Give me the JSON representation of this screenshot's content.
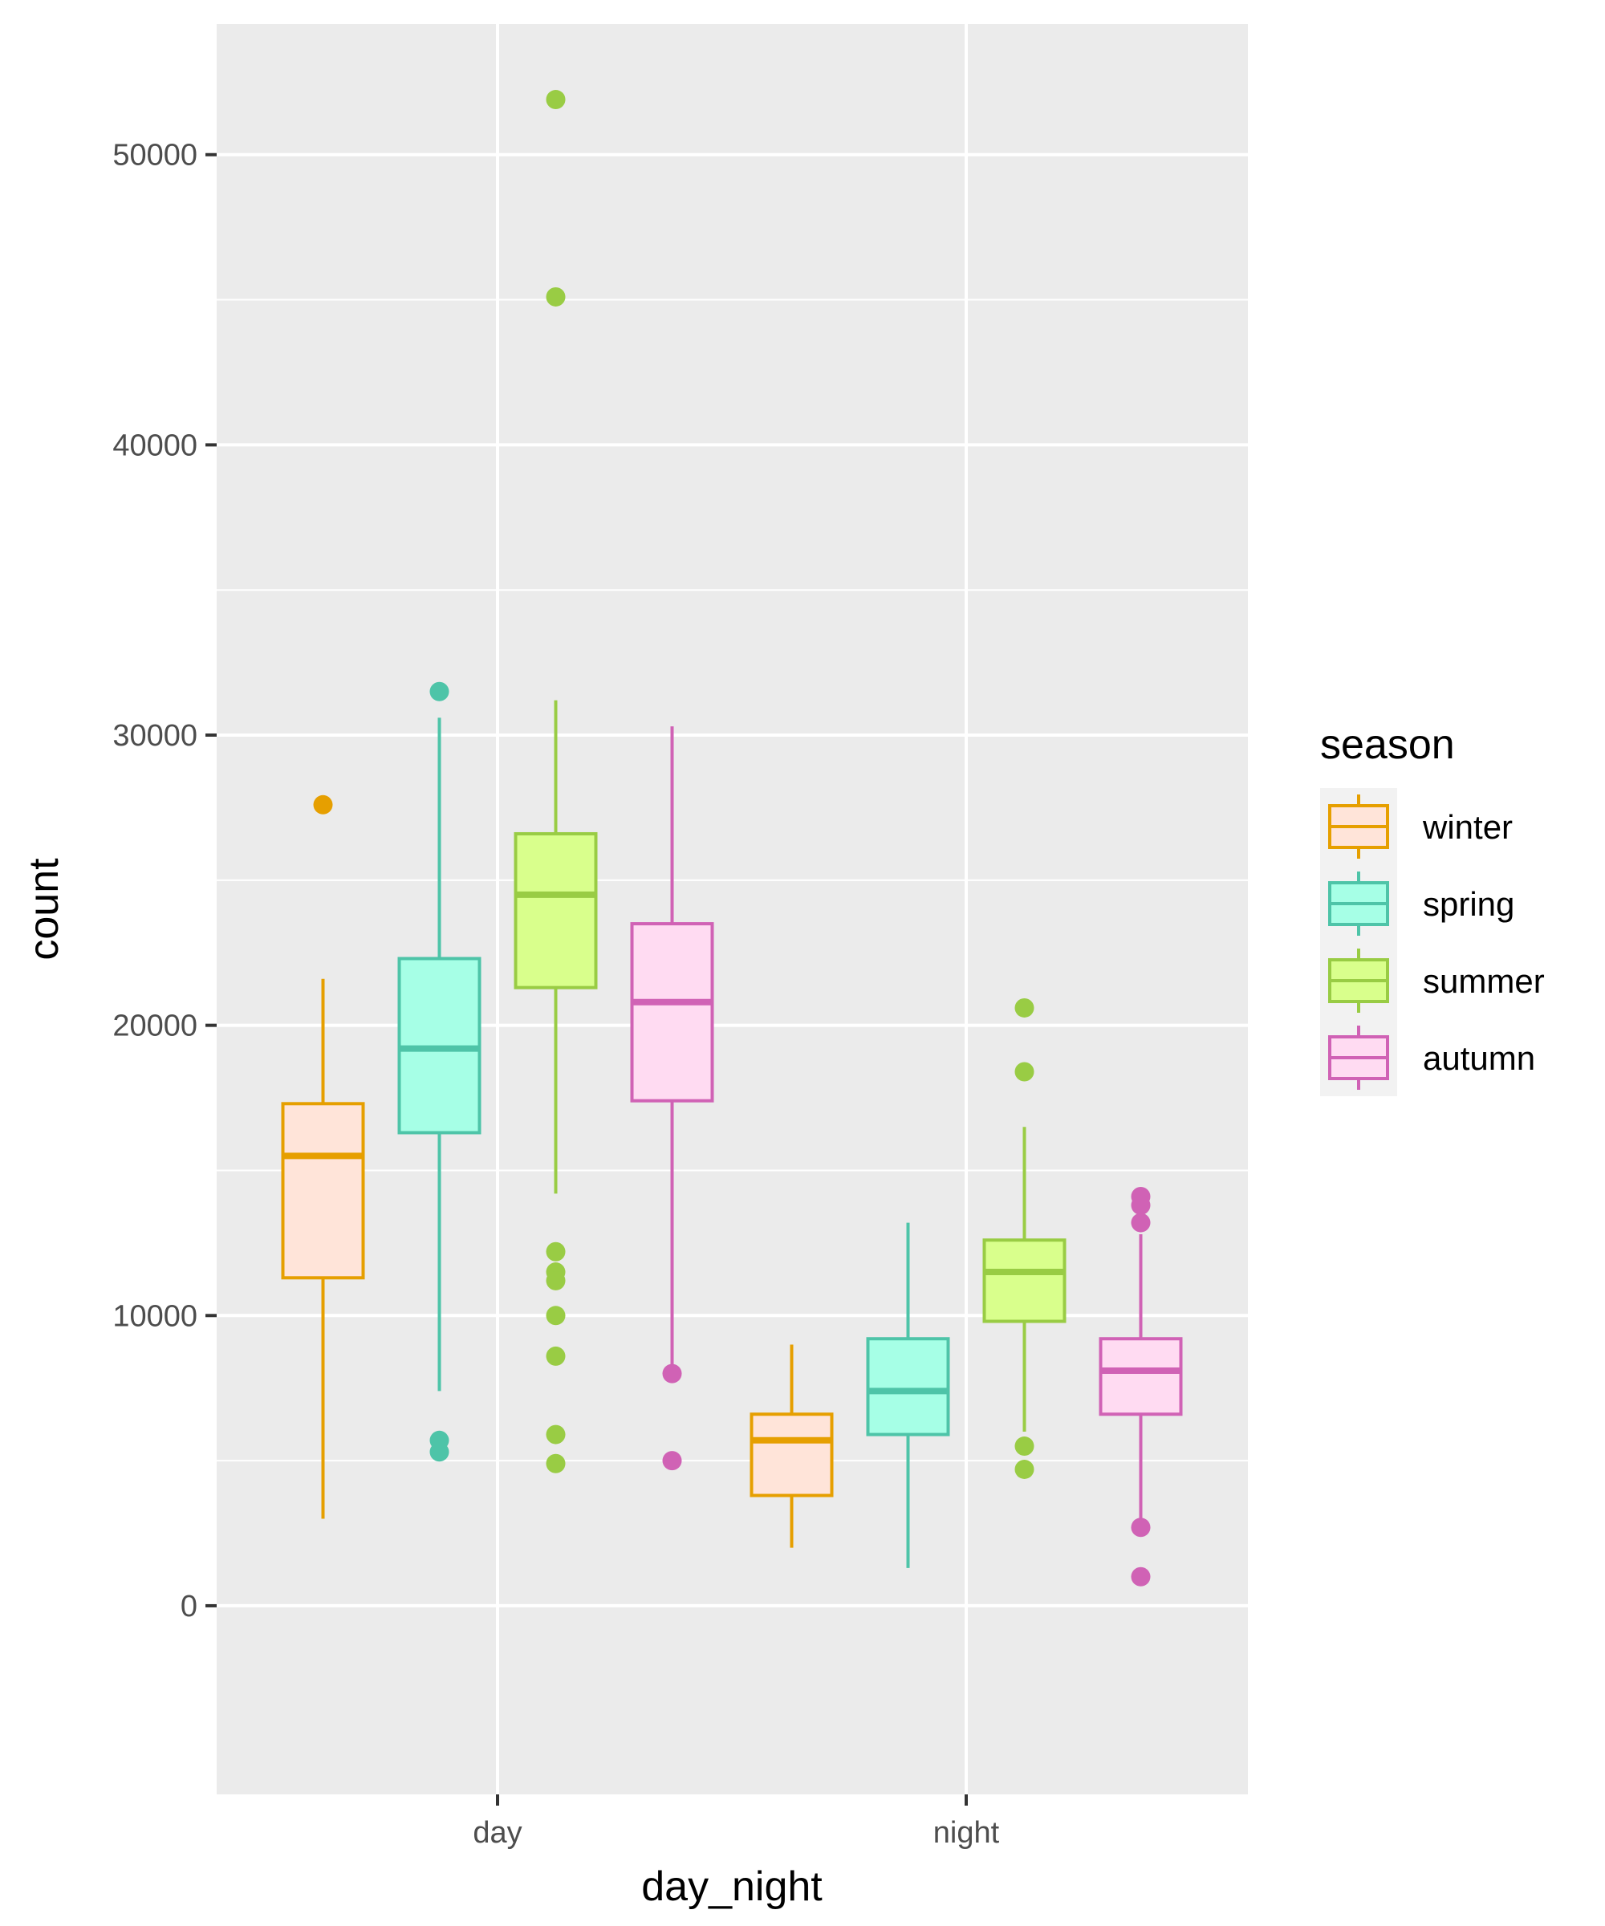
{
  "chart_data": {
    "type": "boxplot",
    "title": "",
    "xlabel": "day_night",
    "ylabel": "count",
    "categories": [
      "day",
      "night"
    ],
    "ylim": [
      -6500,
      54500
    ],
    "yticks": [
      0,
      10000,
      20000,
      30000,
      40000,
      50000
    ],
    "ytick_labels": [
      "0",
      "10000",
      "20000",
      "30000",
      "40000",
      "50000"
    ],
    "grid": true,
    "legend": {
      "title": "season",
      "position": "right"
    },
    "series": [
      {
        "name": "winter",
        "stroke": "#E69F00",
        "fill": "#FFE4D9",
        "boxes": [
          {
            "category": "day",
            "whisker_low": 3000,
            "q1": 11300,
            "median": 15500,
            "q3": 17300,
            "whisker_high": 21600,
            "outliers": [
              27600
            ]
          },
          {
            "category": "night",
            "whisker_low": 2000,
            "q1": 3800,
            "median": 5700,
            "q3": 6600,
            "whisker_high": 9000,
            "outliers": []
          }
        ]
      },
      {
        "name": "spring",
        "stroke": "#4EC4A8",
        "fill": "#A6FFE6",
        "boxes": [
          {
            "category": "day",
            "whisker_low": 7400,
            "q1": 16300,
            "median": 19200,
            "q3": 22300,
            "whisker_high": 30600,
            "outliers": [
              31500,
              5700,
              5300
            ]
          },
          {
            "category": "night",
            "whisker_low": 1300,
            "q1": 5900,
            "median": 7400,
            "q3": 9200,
            "whisker_high": 13200,
            "outliers": []
          }
        ]
      },
      {
        "name": "summer",
        "stroke": "#99CC44",
        "fill": "#D9FF8C",
        "boxes": [
          {
            "category": "day",
            "whisker_low": 14200,
            "q1": 21300,
            "median": 24500,
            "q3": 26600,
            "whisker_high": 31200,
            "outliers": [
              51900,
              45100,
              12200,
              11500,
              11200,
              10000,
              8600,
              5900,
              4900
            ]
          },
          {
            "category": "night",
            "whisker_low": 6000,
            "q1": 9800,
            "median": 11500,
            "q3": 12600,
            "whisker_high": 16500,
            "outliers": [
              20600,
              18400,
              5500,
              4700
            ]
          }
        ]
      },
      {
        "name": "autumn",
        "stroke": "#D062B5",
        "fill": "#FFDBF2",
        "boxes": [
          {
            "category": "day",
            "whisker_low": 8100,
            "q1": 17400,
            "median": 20800,
            "q3": 23500,
            "whisker_high": 30300,
            "outliers": [
              8000,
              5000
            ]
          },
          {
            "category": "night",
            "whisker_low": 3000,
            "q1": 6600,
            "median": 8100,
            "q3": 9200,
            "whisker_high": 12800,
            "outliers": [
              14100,
              13800,
              13200,
              2700,
              1000
            ]
          }
        ]
      }
    ]
  }
}
